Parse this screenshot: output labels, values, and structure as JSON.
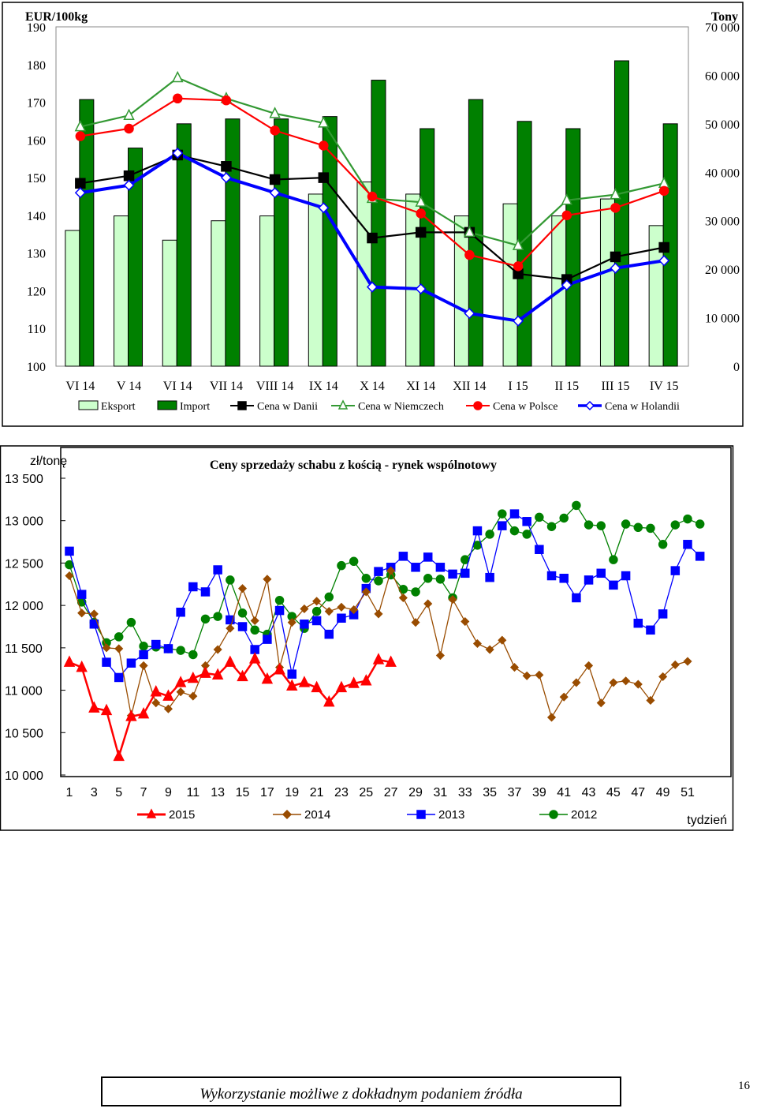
{
  "chart_data": [
    {
      "type": "bar",
      "y_left_label": "EUR/100kg",
      "y_right_label": "Tony",
      "y_left_ticks": [
        "190",
        "180",
        "170",
        "160",
        "150",
        "140",
        "130",
        "120",
        "110",
        "100"
      ],
      "y_right_ticks": [
        "70 000",
        "60 000",
        "50 000",
        "40 000",
        "30 000",
        "20 000",
        "10 000",
        "0"
      ],
      "ylim_left": [
        100,
        190
      ],
      "ylim_right": [
        0,
        70000
      ],
      "categories": [
        "VI 14",
        "V 14",
        "VI 14",
        "VII 14",
        "VIII 14",
        "IX 14",
        "X 14",
        "XI 14",
        "XII 14",
        "I 15",
        "II 15",
        "III 15",
        "IV 15"
      ],
      "bar_series": [
        {
          "name": "Eksport",
          "color": "#ccffcc",
          "values": [
            28000,
            31000,
            26000,
            30000,
            31000,
            35500,
            38000,
            35500,
            31000,
            33500,
            31000,
            34500,
            29000
          ]
        },
        {
          "name": "Import",
          "color": "#008000",
          "values": [
            55000,
            45000,
            50000,
            51000,
            51000,
            51500,
            59000,
            49000,
            55000,
            50500,
            49000,
            63000,
            50000
          ]
        }
      ],
      "line_series": [
        {
          "name": "Cena w Danii",
          "color": "#000000",
          "marker": "square",
          "values": [
            148.5,
            150.5,
            156,
            153,
            149.5,
            150,
            134,
            135.5,
            135.5,
            124.5,
            123,
            129,
            131.5
          ]
        },
        {
          "name": "Cena w Niemczech",
          "color": "#339933",
          "marker": "triangle",
          "values": [
            163.5,
            166.5,
            176.5,
            171,
            167,
            164.5,
            144.5,
            143.5,
            135.5,
            132,
            144,
            145.5,
            148.5
          ]
        },
        {
          "name": "Cena w Polsce",
          "color": "#ff0000",
          "marker": "circle",
          "values": [
            161,
            163,
            171,
            170.5,
            162.5,
            158.5,
            145,
            140.5,
            129.5,
            126.5,
            140,
            142,
            146.5
          ]
        },
        {
          "name": "Cena w Holandii",
          "color": "#0000ff",
          "marker": "diamond",
          "values": [
            146,
            148,
            156.5,
            150,
            146,
            142,
            121,
            120.5,
            114,
            112,
            121.5,
            126,
            128
          ]
        }
      ],
      "legend_position": "bottom"
    },
    {
      "type": "line",
      "title": "Ceny sprzedaży schabu z kością - rynek wspólnotowy",
      "ylabel": "zł/tonę",
      "xlabel": "tydzień",
      "y_ticks": [
        "13 500",
        "13 000",
        "12 500",
        "12 000",
        "11 500",
        "11 000",
        "10 500",
        "10 000"
      ],
      "x_ticks": [
        "1",
        "3",
        "5",
        "7",
        "9",
        "11",
        "13",
        "15",
        "17",
        "19",
        "21",
        "23",
        "25",
        "27",
        "29",
        "31",
        "33",
        "35",
        "37",
        "39",
        "41",
        "43",
        "45",
        "47",
        "49",
        "51"
      ],
      "ylim": [
        10000,
        13500
      ],
      "xlim": [
        1,
        52
      ],
      "series": [
        {
          "name": "2015",
          "color": "#ff0000",
          "marker": "triangle",
          "values": [
            11330,
            11270,
            10790,
            10760,
            10220,
            10690,
            10720,
            10980,
            10930,
            11090,
            11140,
            11200,
            11180,
            11330,
            11160,
            11370,
            11130,
            11240,
            11050,
            11090,
            11030,
            10860,
            11030,
            11080,
            11110,
            11360,
            11330
          ]
        },
        {
          "name": "2014",
          "color": "#994c00",
          "marker": "diamond",
          "values": [
            12350,
            11910,
            11900,
            11500,
            11490,
            10700,
            11290,
            10850,
            10780,
            10980,
            10930,
            11290,
            11480,
            11730,
            12200,
            11820,
            12310,
            11270,
            11800,
            11960,
            12050,
            11930,
            11980,
            11950,
            12160,
            11900,
            12410,
            12090,
            11800,
            12020,
            11410,
            12070,
            11810,
            11550,
            11480,
            11590,
            11270,
            11170,
            11180,
            10680,
            10920,
            11090,
            11290,
            10850,
            11090,
            11110,
            11070,
            10880,
            11160,
            11300,
            11340
          ]
        },
        {
          "name": "2013",
          "color": "#0000ff",
          "marker": "square",
          "values": [
            12640,
            12130,
            11780,
            11330,
            11150,
            11320,
            11420,
            11540,
            11490,
            11920,
            12220,
            12160,
            12420,
            11830,
            11750,
            11480,
            11600,
            11940,
            11190,
            11780,
            11820,
            11660,
            11850,
            11890,
            12200,
            12400,
            12450,
            12580,
            12450,
            12570,
            12450,
            12370,
            12380,
            12880,
            12330,
            12940,
            13080,
            12990,
            12660,
            12350,
            12320,
            12090,
            12300,
            12380,
            12240,
            12350,
            11790,
            11710,
            11900,
            12410,
            12720,
            12580
          ]
        },
        {
          "name": "2012",
          "color": "#008000",
          "marker": "circle",
          "values": [
            12480,
            12040,
            11800,
            11560,
            11630,
            11800,
            11520,
            11510,
            11490,
            11470,
            11420,
            11840,
            11870,
            12300,
            11910,
            11710,
            11660,
            12060,
            11870,
            11730,
            11930,
            12100,
            12470,
            12520,
            12320,
            12290,
            12360,
            12190,
            12160,
            12320,
            12310,
            12090,
            12540,
            12710,
            12840,
            13080,
            12880,
            12840,
            13040,
            12930,
            13030,
            13180,
            12950,
            12940,
            12540,
            12960,
            12920,
            12910,
            12720,
            12950,
            13020,
            12960
          ]
        }
      ],
      "legend_position": "bottom"
    }
  ],
  "footer": {
    "note": "Wykorzystanie możliwe z dokładnym podaniem źródła",
    "page_number": "16"
  }
}
